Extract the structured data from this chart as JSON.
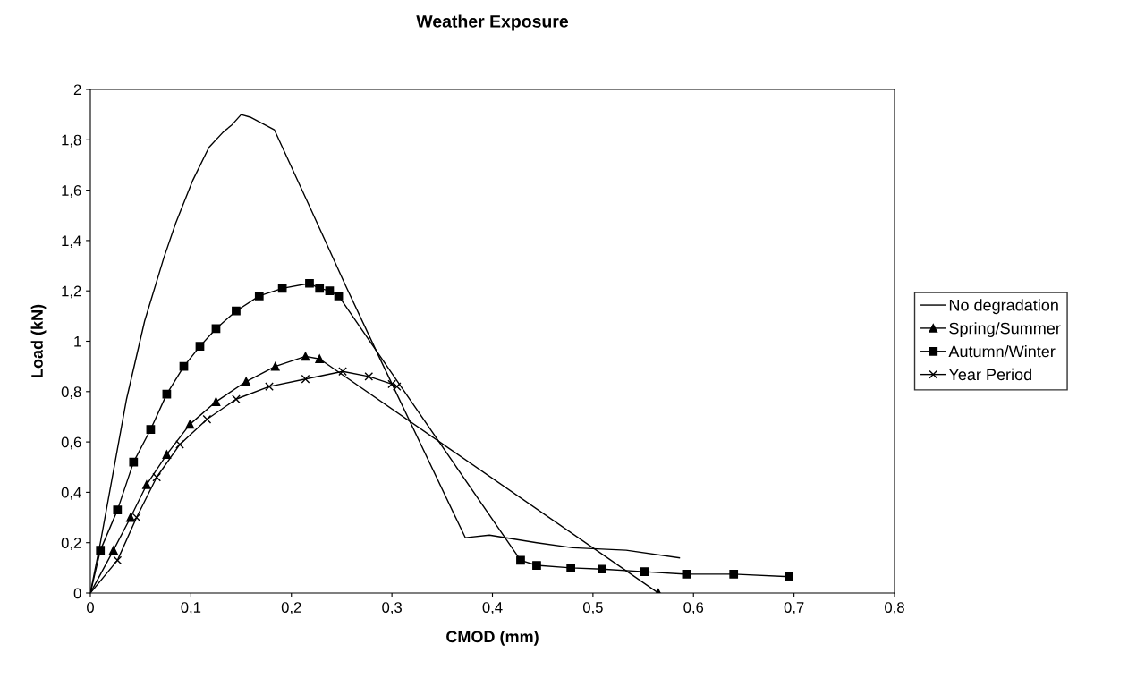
{
  "chart_data": {
    "type": "line",
    "title": "Weather Exposure",
    "xlabel": "CMOD (mm)",
    "ylabel": "Load (kN)",
    "xlim": [
      0,
      0.8
    ],
    "ylim": [
      0,
      2
    ],
    "xticks": [
      {
        "value": 0,
        "label": "0"
      },
      {
        "value": 0.1,
        "label": "0,1"
      },
      {
        "value": 0.2,
        "label": "0,2"
      },
      {
        "value": 0.3,
        "label": "0,3"
      },
      {
        "value": 0.4,
        "label": "0,4"
      },
      {
        "value": 0.5,
        "label": "0,5"
      },
      {
        "value": 0.6,
        "label": "0,6"
      },
      {
        "value": 0.7,
        "label": "0,7"
      },
      {
        "value": 0.8,
        "label": "0,8"
      }
    ],
    "yticks": [
      {
        "value": 0,
        "label": "0"
      },
      {
        "value": 0.2,
        "label": "0,2"
      },
      {
        "value": 0.4,
        "label": "0,4"
      },
      {
        "value": 0.6,
        "label": "0,6"
      },
      {
        "value": 0.8,
        "label": "0,8"
      },
      {
        "value": 1,
        "label": "1"
      },
      {
        "value": 1.2,
        "label": "1,2"
      },
      {
        "value": 1.4,
        "label": "1,4"
      },
      {
        "value": 1.6,
        "label": "1,6"
      },
      {
        "value": 1.8,
        "label": "1,8"
      },
      {
        "value": 2,
        "label": "2"
      }
    ],
    "grid": false,
    "legend": "right",
    "series": [
      {
        "name": "No degradation",
        "color": "#000000",
        "marker": "none",
        "x": [
          0,
          0.01,
          0.036,
          0.054,
          0.073,
          0.085,
          0.102,
          0.118,
          0.132,
          0.141,
          0.15,
          0.159,
          0.183,
          0.221,
          0.254,
          0.287,
          0.373,
          0.397,
          0.444,
          0.48,
          0.533,
          0.586
        ],
        "values": [
          0,
          0.2,
          0.77,
          1.08,
          1.33,
          1.47,
          1.64,
          1.77,
          1.83,
          1.86,
          1.9,
          1.89,
          1.84,
          1.51,
          1.22,
          0.94,
          0.22,
          0.23,
          0.2,
          0.18,
          0.17,
          0.14
        ]
      },
      {
        "name": "Spring/Summer",
        "color": "#000000",
        "marker": "triangle",
        "x": [
          0,
          0.023,
          0.04,
          0.056,
          0.076,
          0.099,
          0.125,
          0.155,
          0.184,
          0.214,
          0.228,
          0.565
        ],
        "values": [
          0,
          0.17,
          0.3,
          0.43,
          0.55,
          0.67,
          0.76,
          0.84,
          0.9,
          0.94,
          0.93,
          0
        ]
      },
      {
        "name": "Autumn/Winter",
        "color": "#000000",
        "marker": "square",
        "x": [
          0,
          0.01,
          0.027,
          0.043,
          0.06,
          0.076,
          0.093,
          0.109,
          0.125,
          0.145,
          0.168,
          0.191,
          0.218,
          0.228,
          0.238,
          0.247,
          0.428,
          0.444,
          0.478,
          0.509,
          0.551,
          0.593,
          0.64,
          0.695
        ],
        "values": [
          0,
          0.17,
          0.33,
          0.52,
          0.65,
          0.79,
          0.9,
          0.98,
          1.05,
          1.12,
          1.18,
          1.21,
          1.23,
          1.21,
          1.2,
          1.18,
          0.13,
          0.11,
          0.1,
          0.095,
          0.085,
          0.075,
          0.075,
          0.065
        ]
      },
      {
        "name": "Year Period",
        "color": "#000000",
        "marker": "cross",
        "x": [
          0,
          0.027,
          0.046,
          0.066,
          0.089,
          0.116,
          0.145,
          0.178,
          0.214,
          0.251,
          0.277,
          0.3,
          0.305
        ],
        "values": [
          0,
          0.13,
          0.3,
          0.46,
          0.59,
          0.69,
          0.77,
          0.82,
          0.85,
          0.88,
          0.86,
          0.83,
          0.82
        ]
      }
    ]
  }
}
